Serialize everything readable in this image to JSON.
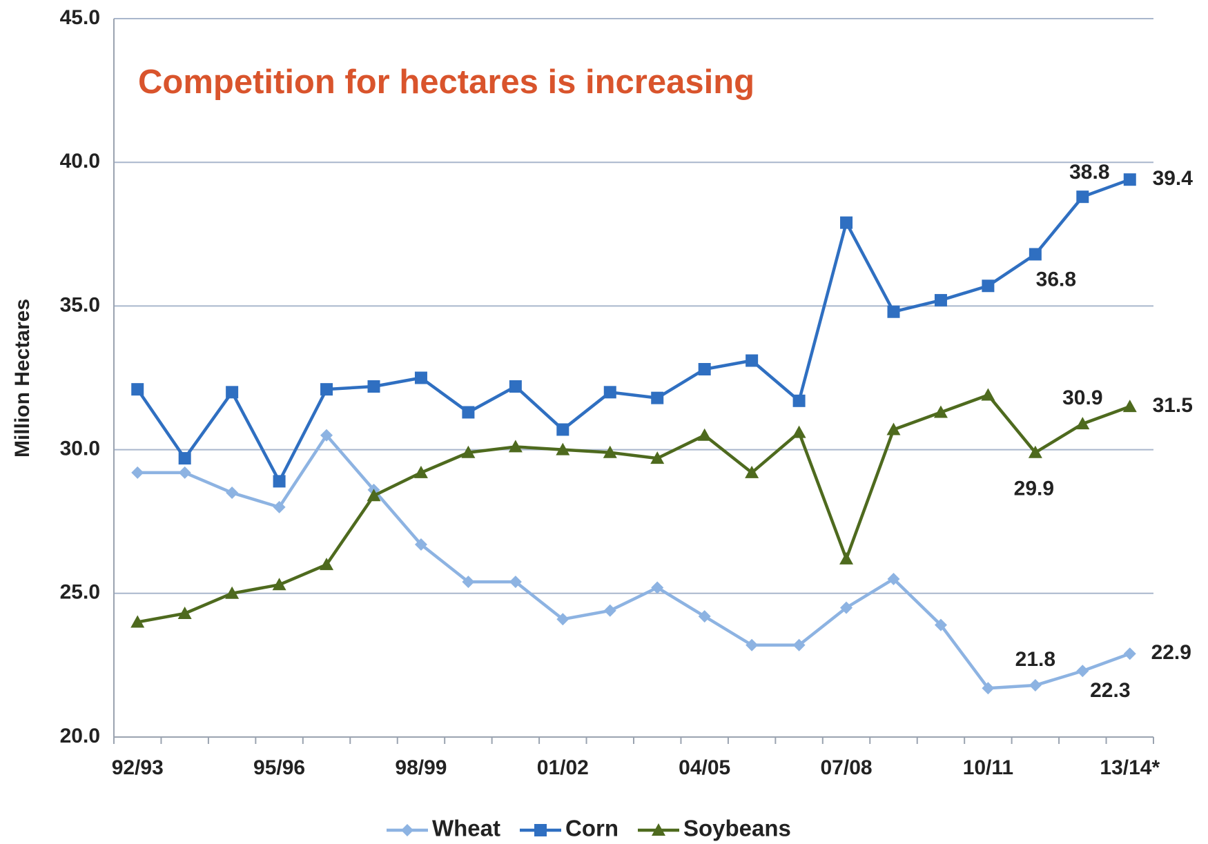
{
  "chart_data": {
    "type": "line",
    "annotation": "Competition for hectares is increasing",
    "y_label": "Million Hectares",
    "categories": [
      "92/93",
      null,
      null,
      "95/96",
      null,
      null,
      "98/99",
      null,
      null,
      "01/02",
      null,
      null,
      "04/05",
      null,
      null,
      "07/08",
      null,
      null,
      "10/11",
      null,
      null,
      "13/14*"
    ],
    "series": [
      {
        "name": "Wheat",
        "color": "#8db3e2",
        "marker": "diamond",
        "values": [
          29.2,
          29.2,
          28.5,
          28.0,
          30.5,
          28.6,
          26.7,
          25.4,
          25.4,
          24.1,
          24.4,
          25.2,
          24.2,
          23.2,
          23.2,
          24.5,
          25.5,
          23.9,
          21.7,
          21.8,
          22.3,
          22.9
        ],
        "value_labels": [
          null,
          null,
          null,
          null,
          null,
          null,
          null,
          null,
          null,
          null,
          null,
          null,
          null,
          null,
          null,
          null,
          null,
          null,
          null,
          "21.8",
          "22.3",
          "22.9"
        ]
      },
      {
        "name": "Corn",
        "color": "#2f6fc1",
        "marker": "square",
        "values": [
          32.1,
          29.7,
          32.0,
          28.9,
          32.1,
          32.2,
          32.5,
          31.3,
          32.2,
          30.7,
          32.0,
          31.8,
          32.8,
          33.1,
          31.7,
          37.9,
          34.8,
          35.2,
          35.7,
          36.8,
          38.8,
          39.4
        ],
        "value_labels": [
          null,
          null,
          null,
          null,
          null,
          null,
          null,
          null,
          null,
          null,
          null,
          null,
          null,
          null,
          null,
          null,
          null,
          null,
          null,
          "36.8",
          "38.8",
          "39.4"
        ]
      },
      {
        "name": "Soybeans",
        "color": "#4e6a1e",
        "marker": "triangle",
        "values": [
          24.0,
          24.3,
          25.0,
          25.3,
          26.0,
          28.4,
          29.2,
          29.9,
          30.1,
          30.0,
          29.9,
          29.7,
          30.5,
          29.2,
          30.6,
          26.2,
          30.7,
          31.3,
          31.9,
          29.9,
          30.9,
          31.5
        ],
        "value_labels": [
          null,
          null,
          null,
          null,
          null,
          null,
          null,
          null,
          null,
          null,
          null,
          null,
          null,
          null,
          null,
          null,
          null,
          null,
          null,
          "29.9",
          "30.9",
          "31.5"
        ]
      }
    ],
    "ylim": [
      20,
      45
    ],
    "yticks": [
      {
        "value": 20,
        "label": "20.0"
      },
      {
        "value": 25,
        "label": "25.0"
      },
      {
        "value": 30,
        "label": "30.0"
      },
      {
        "value": 35,
        "label": "35.0"
      },
      {
        "value": 40,
        "label": "40.0"
      },
      {
        "value": 45,
        "label": "45.0"
      }
    ],
    "grid": true,
    "legend": "bottom"
  }
}
